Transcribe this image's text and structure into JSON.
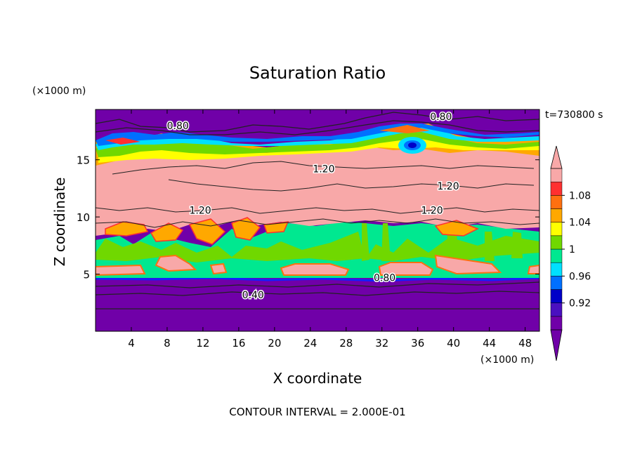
{
  "chart_data": {
    "type": "heatmap",
    "title": "Saturation Ratio",
    "xlabel": "X coordinate",
    "ylabel": "Z coordinate",
    "x_unit": "(×1000 m)",
    "y_unit": "(×1000 m)",
    "time_label": "t=730800 s",
    "footer": "CONTOUR INTERVAL = 2.000E-01",
    "xlim": [
      0,
      49.6
    ],
    "ylim": [
      0,
      19.4
    ],
    "x_ticks": [
      4,
      8,
      12,
      16,
      20,
      24,
      28,
      32,
      36,
      40,
      44,
      48
    ],
    "y_ticks": [
      5,
      10,
      15
    ],
    "colorbar": {
      "labels": [
        "0.92",
        "0.96",
        "1",
        "1.04",
        "1.08"
      ],
      "bins": [
        {
          "color": "#7000a8",
          "lo": null,
          "hi": 0.9
        },
        {
          "color": "#4a10c0",
          "lo": 0.9,
          "hi": 0.92
        },
        {
          "color": "#0000c8",
          "lo": 0.92,
          "hi": 0.94
        },
        {
          "color": "#0070ff",
          "lo": 0.94,
          "hi": 0.96
        },
        {
          "color": "#00e0ff",
          "lo": 0.96,
          "hi": 0.98
        },
        {
          "color": "#00e890",
          "lo": 0.98,
          "hi": 1.0
        },
        {
          "color": "#70d800",
          "lo": 1.0,
          "hi": 1.02
        },
        {
          "color": "#ffff00",
          "lo": 1.02,
          "hi": 1.04
        },
        {
          "color": "#ffa800",
          "lo": 1.04,
          "hi": 1.06
        },
        {
          "color": "#ff7010",
          "lo": 1.06,
          "hi": 1.08
        },
        {
          "color": "#ff3030",
          "lo": 1.08,
          "hi": 1.1
        },
        {
          "color": "#f8a8a8",
          "lo": 1.1,
          "hi": null
        }
      ]
    },
    "layers": [
      {
        "z_min": 0.0,
        "z_max": 4.8,
        "band": "#7000a8",
        "range": "< 0.90"
      },
      {
        "z_min": 4.8,
        "z_max": 8.4,
        "band": "#00e890",
        "range": "0.98 - 1.02"
      },
      {
        "z_min": 8.4,
        "z_max": 15.2,
        "band": "#f8a8a8",
        "range": "> 1.10"
      },
      {
        "z_min": 15.2,
        "z_max": 17.4,
        "band": "#00e890",
        "range": "0.96 - 1.08"
      },
      {
        "z_min": 17.4,
        "z_max": 19.4,
        "band": "#7000a8",
        "range": "< 0.90"
      }
    ],
    "contour_labels": [
      {
        "text": "0.80",
        "x": 9.2,
        "z": 18.0
      },
      {
        "text": "0.80",
        "x": 38.6,
        "z": 18.8
      },
      {
        "text": "1.20",
        "x": 25.5,
        "z": 14.2
      },
      {
        "text": "1.20",
        "x": 39.4,
        "z": 12.7
      },
      {
        "text": "1.20",
        "x": 11.7,
        "z": 10.6
      },
      {
        "text": "1.20",
        "x": 37.6,
        "z": 10.6
      },
      {
        "text": "0.80",
        "x": 32.3,
        "z": 4.7
      },
      {
        "text": "0.40",
        "x": 17.6,
        "z": 3.2
      }
    ],
    "grid": false,
    "legend_position": "right"
  }
}
